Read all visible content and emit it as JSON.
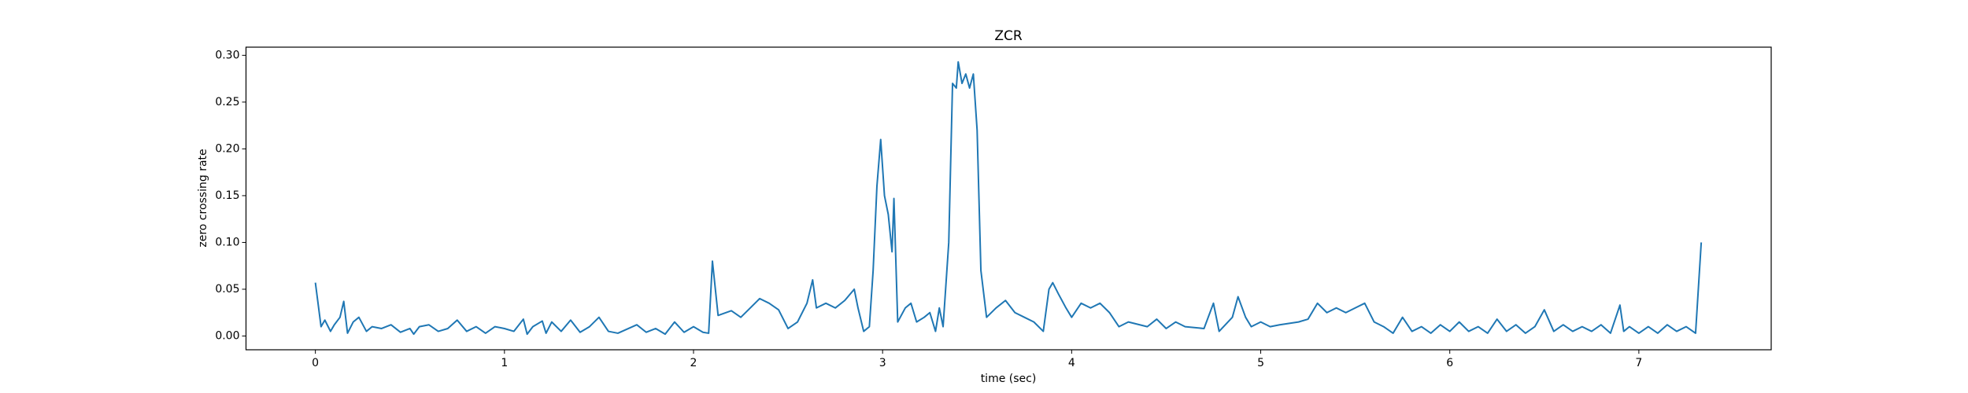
{
  "chart_data": {
    "type": "line",
    "title": "ZCR",
    "x_label": "time (sec)",
    "y_label": "zero crossing rate",
    "xlim": [
      -0.367,
      7.7
    ],
    "ylim": [
      -0.0147,
      0.3087
    ],
    "xticks": [
      0,
      1,
      2,
      3,
      4,
      5,
      6,
      7
    ],
    "yticks": [
      {
        "value": 0,
        "label": "0.00"
      },
      {
        "value": 0.05,
        "label": "0.05"
      },
      {
        "value": 0.1,
        "label": "0.10"
      },
      {
        "value": 0.15,
        "label": "0.15"
      },
      {
        "value": 0.2,
        "label": "0.20"
      },
      {
        "value": 0.25,
        "label": "0.25"
      },
      {
        "value": 0.3,
        "label": "0.30"
      }
    ],
    "grid": false,
    "series": [
      {
        "color": "#1f77b4",
        "x": [
          0.0,
          0.03,
          0.05,
          0.08,
          0.1,
          0.13,
          0.15,
          0.17,
          0.2,
          0.23,
          0.27,
          0.3,
          0.35,
          0.4,
          0.45,
          0.5,
          0.52,
          0.55,
          0.6,
          0.65,
          0.7,
          0.75,
          0.8,
          0.85,
          0.9,
          0.95,
          1.0,
          1.05,
          1.1,
          1.12,
          1.15,
          1.2,
          1.22,
          1.25,
          1.3,
          1.35,
          1.4,
          1.45,
          1.5,
          1.55,
          1.6,
          1.7,
          1.75,
          1.8,
          1.85,
          1.9,
          1.95,
          2.0,
          2.05,
          2.08,
          2.1,
          2.13,
          2.2,
          2.25,
          2.3,
          2.35,
          2.4,
          2.45,
          2.5,
          2.55,
          2.6,
          2.63,
          2.65,
          2.7,
          2.75,
          2.8,
          2.85,
          2.87,
          2.9,
          2.93,
          2.95,
          2.97,
          2.99,
          3.01,
          3.03,
          3.05,
          3.06,
          3.08,
          3.12,
          3.15,
          3.18,
          3.22,
          3.25,
          3.28,
          3.3,
          3.32,
          3.35,
          3.37,
          3.39,
          3.4,
          3.42,
          3.44,
          3.46,
          3.48,
          3.5,
          3.52,
          3.55,
          3.6,
          3.65,
          3.7,
          3.75,
          3.8,
          3.85,
          3.88,
          3.9,
          3.93,
          3.97,
          4.0,
          4.05,
          4.1,
          4.15,
          4.2,
          4.25,
          4.3,
          4.4,
          4.45,
          4.5,
          4.55,
          4.6,
          4.7,
          4.75,
          4.78,
          4.85,
          4.88,
          4.92,
          4.95,
          5.0,
          5.05,
          5.1,
          5.2,
          5.25,
          5.3,
          5.35,
          5.4,
          5.45,
          5.5,
          5.55,
          5.6,
          5.65,
          5.7,
          5.75,
          5.8,
          5.85,
          5.9,
          5.95,
          6.0,
          6.05,
          6.1,
          6.15,
          6.2,
          6.25,
          6.3,
          6.35,
          6.4,
          6.45,
          6.5,
          6.55,
          6.6,
          6.65,
          6.7,
          6.75,
          6.8,
          6.85,
          6.9,
          6.92,
          6.95,
          7.0,
          7.05,
          7.1,
          7.15,
          7.2,
          7.25,
          7.3,
          7.33
        ],
        "values": [
          0.057,
          0.01,
          0.017,
          0.005,
          0.012,
          0.02,
          0.037,
          0.003,
          0.015,
          0.02,
          0.005,
          0.01,
          0.008,
          0.012,
          0.004,
          0.008,
          0.002,
          0.01,
          0.012,
          0.005,
          0.008,
          0.017,
          0.005,
          0.01,
          0.003,
          0.01,
          0.008,
          0.005,
          0.018,
          0.002,
          0.01,
          0.016,
          0.003,
          0.015,
          0.005,
          0.017,
          0.004,
          0.01,
          0.02,
          0.005,
          0.003,
          0.012,
          0.004,
          0.008,
          0.002,
          0.015,
          0.004,
          0.01,
          0.004,
          0.003,
          0.08,
          0.022,
          0.027,
          0.02,
          0.03,
          0.04,
          0.035,
          0.028,
          0.008,
          0.015,
          0.035,
          0.06,
          0.03,
          0.035,
          0.03,
          0.038,
          0.05,
          0.03,
          0.005,
          0.01,
          0.07,
          0.16,
          0.21,
          0.15,
          0.13,
          0.09,
          0.147,
          0.015,
          0.03,
          0.035,
          0.015,
          0.02,
          0.025,
          0.005,
          0.03,
          0.01,
          0.1,
          0.27,
          0.265,
          0.293,
          0.27,
          0.28,
          0.265,
          0.28,
          0.22,
          0.07,
          0.02,
          0.03,
          0.038,
          0.025,
          0.02,
          0.015,
          0.005,
          0.05,
          0.057,
          0.045,
          0.03,
          0.02,
          0.035,
          0.03,
          0.035,
          0.025,
          0.01,
          0.015,
          0.01,
          0.018,
          0.008,
          0.015,
          0.01,
          0.008,
          0.035,
          0.005,
          0.02,
          0.042,
          0.02,
          0.01,
          0.015,
          0.01,
          0.012,
          0.015,
          0.018,
          0.035,
          0.025,
          0.03,
          0.025,
          0.03,
          0.035,
          0.015,
          0.01,
          0.003,
          0.02,
          0.005,
          0.01,
          0.003,
          0.012,
          0.005,
          0.015,
          0.005,
          0.01,
          0.003,
          0.018,
          0.005,
          0.012,
          0.003,
          0.01,
          0.028,
          0.005,
          0.012,
          0.005,
          0.01,
          0.005,
          0.012,
          0.003,
          0.033,
          0.005,
          0.01,
          0.003,
          0.01,
          0.003,
          0.012,
          0.005,
          0.01,
          0.003,
          0.1
        ]
      }
    ]
  }
}
